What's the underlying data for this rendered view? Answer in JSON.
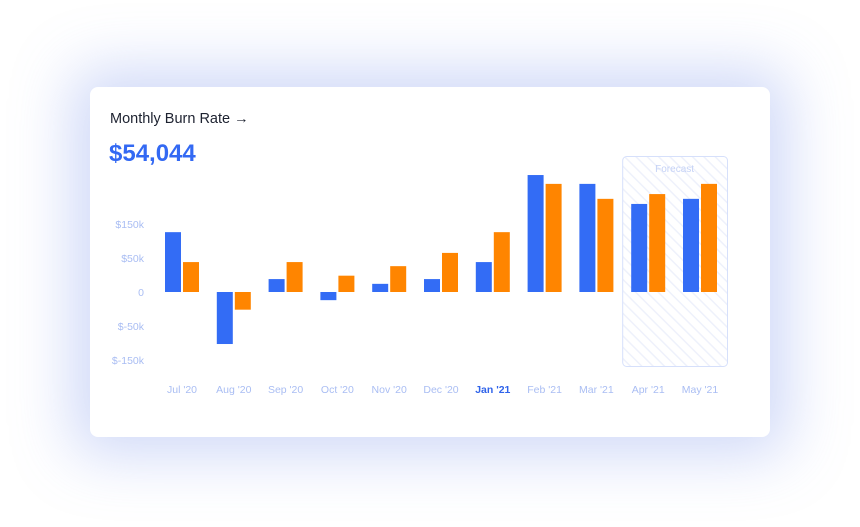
{
  "chart_data": {
    "type": "bar",
    "title": "Monthly Burn Rate →",
    "headline_value": "$54,044",
    "categories": [
      "Jul '20",
      "Aug '20",
      "Sep '20",
      "Oct '20",
      "Nov '20",
      "Dec '20",
      "Jan '21",
      "Feb '21",
      "Mar '21",
      "Apr '21",
      "May '21"
    ],
    "highlighted_category": "Jan '21",
    "series": [
      {
        "color": "#336cf5",
        "values": [
          126000,
          -103000,
          19000,
          -12000,
          12000,
          19000,
          44000,
          294000,
          268000,
          209000,
          224000
        ]
      },
      {
        "color": "#ff8500",
        "values": [
          44000,
          -26000,
          44000,
          24000,
          38000,
          65000,
          126000,
          268000,
          224000,
          238000,
          268000
        ]
      }
    ],
    "y_ticks": [
      {
        "value": 150000,
        "label": "$150k"
      },
      {
        "value": 50000,
        "label": "$50k"
      },
      {
        "value": 0,
        "label": "0"
      },
      {
        "value": -50000,
        "label": "$-50k"
      },
      {
        "value": -150000,
        "label": "$-150k"
      }
    ],
    "forecast": {
      "label": "Forecast",
      "categories": [
        "Apr '21",
        "May '21"
      ]
    },
    "grid": false,
    "legend": "none"
  }
}
